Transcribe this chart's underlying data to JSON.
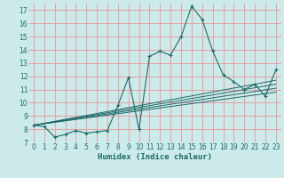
{
  "xlabel": "Humidex (Indice chaleur)",
  "bg_color": "#cceaea",
  "grid_color": "#e8a0a0",
  "line_color": "#1a6b6b",
  "xlim": [
    -0.5,
    23.5
  ],
  "ylim": [
    7,
    17.5
  ],
  "yticks": [
    7,
    8,
    9,
    10,
    11,
    12,
    13,
    14,
    15,
    16,
    17
  ],
  "xticks": [
    0,
    1,
    2,
    3,
    4,
    5,
    6,
    7,
    8,
    9,
    10,
    11,
    12,
    13,
    14,
    15,
    16,
    17,
    18,
    19,
    20,
    21,
    22,
    23
  ],
  "main_x": [
    0,
    1,
    2,
    3,
    4,
    5,
    6,
    7,
    8,
    9,
    10,
    11,
    12,
    13,
    14,
    15,
    16,
    17,
    18,
    19,
    20,
    21,
    22,
    23
  ],
  "main_y": [
    8.3,
    8.2,
    7.4,
    7.6,
    7.9,
    7.7,
    7.8,
    7.9,
    9.8,
    11.9,
    8.0,
    13.5,
    13.9,
    13.6,
    15.0,
    17.3,
    16.3,
    13.9,
    12.1,
    11.6,
    11.0,
    11.4,
    10.5,
    12.5
  ],
  "linear_lines": [
    {
      "x": [
        0,
        23
      ],
      "y": [
        8.3,
        10.8
      ]
    },
    {
      "x": [
        0,
        23
      ],
      "y": [
        8.3,
        11.1
      ]
    },
    {
      "x": [
        0,
        23
      ],
      "y": [
        8.3,
        11.4
      ]
    },
    {
      "x": [
        0,
        23
      ],
      "y": [
        8.3,
        11.7
      ]
    }
  ],
  "xlabel_fontsize": 6.5,
  "tick_fontsize": 5.5
}
